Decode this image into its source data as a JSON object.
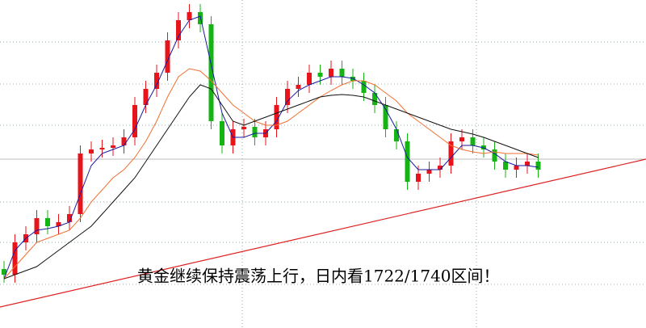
{
  "chart_data": {
    "type": "candlestick",
    "title": "黄金继续保持震荡上行，日内看1722/1740区间！",
    "ylim": [
      1625.5,
      1828.5
    ],
    "up_color": "#e8141b",
    "down_color": "#14b414",
    "open": [
      1662,
      1658.5,
      1678.5,
      1683.5,
      1693.5,
      1688.5,
      1691,
      1696,
      1733.5,
      1736,
      1737,
      1738.5,
      1743.5,
      1763.5,
      1773.5,
      1783.5,
      1803.5,
      1816,
      1821,
      1813.5,
      1753.5,
      1738.5,
      1748.5,
      1750,
      1743.5,
      1748.5,
      1763.5,
      1773.5,
      1776,
      1783.5,
      1781,
      1786,
      1781,
      1778.5,
      1771,
      1763.5,
      1748.5,
      1741,
      1716,
      1721,
      1723.5,
      1726,
      1741,
      1743.5,
      1738.5,
      1736,
      1728.5,
      1723.5,
      1726,
      1728.5
    ],
    "high": [
      1667,
      1683.5,
      1688.5,
      1698.5,
      1698.5,
      1696,
      1701,
      1738.5,
      1741,
      1742,
      1743.5,
      1748.5,
      1768.5,
      1778.5,
      1788.5,
      1808.5,
      1821,
      1826,
      1826,
      1818.5,
      1758.5,
      1753.5,
      1755,
      1755,
      1753.5,
      1768.5,
      1778.5,
      1781,
      1788.5,
      1788.5,
      1791,
      1791,
      1786,
      1783.5,
      1776,
      1768.5,
      1753.5,
      1746,
      1726,
      1728.5,
      1731,
      1746,
      1748.5,
      1748.5,
      1743.5,
      1741,
      1733.5,
      1731,
      1733.5,
      1733.5
    ],
    "low": [
      1653.5,
      1653.5,
      1673.5,
      1678.5,
      1683.5,
      1683.5,
      1686,
      1691,
      1728.5,
      1731,
      1732,
      1733.5,
      1738.5,
      1758.5,
      1768.5,
      1778.5,
      1798.5,
      1811,
      1808.5,
      1748.5,
      1733.5,
      1733.5,
      1743.5,
      1738.5,
      1738.5,
      1743.5,
      1758.5,
      1768.5,
      1771,
      1776,
      1776,
      1776,
      1773.5,
      1766,
      1758.5,
      1743.5,
      1736,
      1711,
      1711,
      1716,
      1718.5,
      1721,
      1736,
      1733.5,
      1731,
      1723.5,
      1718.5,
      1718.5,
      1721,
      1718.5
    ],
    "close": [
      1658.5,
      1678.5,
      1683.5,
      1693.5,
      1688.5,
      1691,
      1696,
      1733.5,
      1736,
      1737,
      1738.5,
      1743.5,
      1763.5,
      1773.5,
      1783.5,
      1803.5,
      1816,
      1821,
      1813.5,
      1753.5,
      1738.5,
      1748.5,
      1750,
      1743.5,
      1748.5,
      1763.5,
      1773.5,
      1776,
      1783.5,
      1781,
      1786,
      1781,
      1778.5,
      1771,
      1763.5,
      1748.5,
      1741,
      1716,
      1721,
      1723.5,
      1726,
      1741,
      1743.5,
      1738.5,
      1736,
      1728.5,
      1723.5,
      1726,
      1728.5,
      1723.5
    ],
    "lines": [
      {
        "color": "#1a1aa0",
        "values": [
          1656,
          1673.5,
          1681,
          1686,
          1687,
          1688.5,
          1691,
          1708.5,
          1726,
          1733.5,
          1736,
          1738.5,
          1748.5,
          1763.5,
          1776,
          1791,
          1806,
          1816,
          1818.5,
          1788.5,
          1758.5,
          1743.5,
          1743.5,
          1746,
          1746,
          1753.5,
          1766,
          1772.5,
          1776,
          1778.5,
          1781,
          1781,
          1780,
          1776,
          1771,
          1761,
          1748.5,
          1731,
          1723.5,
          1723.5,
          1723.5,
          1731,
          1738.5,
          1738.5,
          1737,
          1733.5,
          1728.5,
          1726,
          1726,
          1725
        ]
      },
      {
        "color": "#f07030",
        "values": [
          1656,
          1663.5,
          1671,
          1678.5,
          1681,
          1683.5,
          1686,
          1693.5,
          1703.5,
          1711,
          1718.5,
          1723.5,
          1731,
          1741,
          1753.5,
          1768.5,
          1781,
          1786,
          1784.5,
          1778.5,
          1771,
          1763.5,
          1758.5,
          1753.5,
          1751,
          1751,
          1753.5,
          1758.5,
          1763.5,
          1768.5,
          1772.5,
          1776,
          1778.5,
          1778.5,
          1776,
          1771,
          1766,
          1758.5,
          1753.5,
          1748.5,
          1743.5,
          1738.5,
          1736,
          1734.5,
          1733.5,
          1734.5,
          1733.5,
          1733.5,
          1733.5,
          1732.5
        ]
      },
      {
        "color": "#111111",
        "values": [
          1656,
          1658.5,
          1661,
          1663.5,
          1668.5,
          1673.5,
          1678.5,
          1683.5,
          1688.5,
          1696,
          1703.5,
          1711,
          1718.5,
          1728.5,
          1738.5,
          1748.5,
          1758.5,
          1768.5,
          1776,
          1773.5,
          1763.5,
          1753.5,
          1751,
          1753.5,
          1756,
          1758.5,
          1761,
          1763.5,
          1766,
          1768.5,
          1769.5,
          1770,
          1769.5,
          1768.5,
          1766,
          1763.5,
          1761,
          1758.5,
          1756,
          1753.5,
          1751,
          1748.5,
          1747,
          1745.5,
          1743.5,
          1741,
          1738.5,
          1736,
          1733.5,
          1731
        ]
      }
    ],
    "trend_line": {
      "color": "#e02020",
      "values": [
        1638.5,
        1730
      ]
    }
  }
}
